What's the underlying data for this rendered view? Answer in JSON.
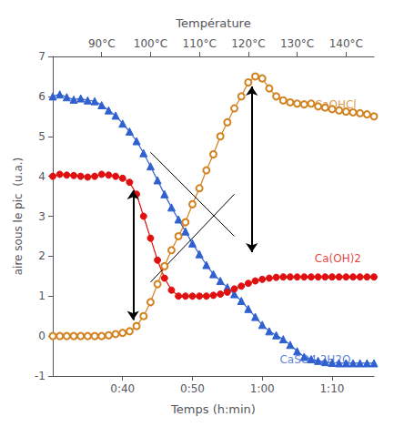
{
  "chart_data": {
    "type": "line",
    "xlabel": "Temps (h:min)",
    "ylabel": "aire sous le pic  (u.a.)",
    "x2label": "Température",
    "xlim": [
      30,
      76
    ],
    "xticks": [
      {
        "value": 40,
        "label": "0:40"
      },
      {
        "value": 50,
        "label": "0:50"
      },
      {
        "value": 60,
        "label": "1:00"
      },
      {
        "value": 70,
        "label": "1:10"
      }
    ],
    "x2lim": [
      30,
      76
    ],
    "x2ticks": [
      {
        "value": 37,
        "label": "90°C"
      },
      {
        "value": 44,
        "label": "100°C"
      },
      {
        "value": 51,
        "label": "110°C"
      },
      {
        "value": 58,
        "label": "120°C"
      },
      {
        "value": 65,
        "label": "130°C"
      },
      {
        "value": 72,
        "label": "140°C"
      }
    ],
    "ylim": [
      -1,
      7
    ],
    "yticks": [
      -1,
      0,
      1,
      2,
      3,
      4,
      5,
      6,
      7
    ],
    "grid": false,
    "series": [
      {
        "name": "CaSO4.2H2O",
        "color": "#3060d0",
        "marker": "triangle",
        "line_style": "solid",
        "x": [
          30,
          31,
          32,
          33,
          34,
          35,
          36,
          37,
          38,
          39,
          40,
          41,
          42,
          43,
          44,
          45,
          46,
          47,
          48,
          49,
          50,
          51,
          52,
          53,
          54,
          55,
          56,
          57,
          58,
          59,
          60,
          61,
          62,
          63,
          64,
          65,
          66,
          67,
          68,
          69,
          70,
          71,
          72,
          73,
          74,
          75,
          76
        ],
        "values": [
          6.0,
          6.05,
          5.98,
          5.92,
          5.95,
          5.9,
          5.88,
          5.78,
          5.65,
          5.52,
          5.32,
          5.12,
          4.88,
          4.58,
          4.25,
          3.9,
          3.55,
          3.22,
          2.92,
          2.62,
          2.32,
          2.05,
          1.78,
          1.55,
          1.38,
          1.22,
          1.05,
          0.88,
          0.68,
          0.48,
          0.28,
          0.12,
          0.02,
          -0.08,
          -0.22,
          -0.38,
          -0.52,
          -0.58,
          -0.62,
          -0.65,
          -0.67,
          -0.68,
          -0.68,
          -0.68,
          -0.68,
          -0.68,
          -0.68
        ]
      },
      {
        "name": "Ca(OH)2",
        "color": "#e01010",
        "marker": "circle",
        "line_style": "solid",
        "x": [
          30,
          31,
          32,
          33,
          34,
          35,
          36,
          37,
          38,
          39,
          40,
          41,
          42,
          43,
          44,
          45,
          46,
          47,
          48,
          49,
          50,
          51,
          52,
          53,
          54,
          55,
          56,
          57,
          58,
          59,
          60,
          61,
          62,
          63,
          64,
          65,
          66,
          67,
          68,
          69,
          70,
          71,
          72,
          73,
          74,
          75,
          76
        ],
        "values": [
          4.0,
          4.05,
          4.03,
          4.02,
          4.0,
          3.98,
          4.0,
          4.05,
          4.03,
          4.0,
          3.95,
          3.85,
          3.55,
          3.0,
          2.45,
          1.9,
          1.45,
          1.15,
          1.0,
          1.0,
          1.0,
          1.0,
          1.0,
          1.02,
          1.05,
          1.1,
          1.18,
          1.25,
          1.32,
          1.38,
          1.42,
          1.45,
          1.47,
          1.48,
          1.48,
          1.48,
          1.48,
          1.48,
          1.48,
          1.48,
          1.48,
          1.48,
          1.48,
          1.48,
          1.48,
          1.48,
          1.48
        ]
      },
      {
        "name": "CaOHCl",
        "color": "#d2821e",
        "marker": "open circle",
        "line_style": "solid",
        "x": [
          30,
          31,
          32,
          33,
          34,
          35,
          36,
          37,
          38,
          39,
          40,
          41,
          42,
          43,
          44,
          45,
          46,
          47,
          48,
          49,
          50,
          51,
          52,
          53,
          54,
          55,
          56,
          57,
          58,
          59,
          60,
          61,
          62,
          63,
          64,
          65,
          66,
          67,
          68,
          69,
          70,
          71,
          72,
          73,
          74,
          75,
          76
        ],
        "values": [
          0.0,
          0.0,
          0.0,
          0.0,
          0.0,
          0.0,
          0.0,
          0.0,
          0.02,
          0.05,
          0.08,
          0.12,
          0.25,
          0.5,
          0.85,
          1.3,
          1.75,
          2.15,
          2.5,
          2.85,
          3.3,
          3.7,
          4.15,
          4.55,
          5.0,
          5.35,
          5.7,
          6.0,
          6.35,
          6.5,
          6.45,
          6.2,
          6.0,
          5.9,
          5.85,
          5.82,
          5.8,
          5.82,
          5.75,
          5.72,
          5.68,
          5.65,
          5.62,
          5.6,
          5.58,
          5.55,
          5.5
        ]
      }
    ],
    "arrows": [
      {
        "x": 41.5,
        "y_start": 0.4,
        "y_end": 3.65,
        "color": "black"
      },
      {
        "x": 58.5,
        "y_start": 2.1,
        "y_end": 6.25,
        "color": "black"
      }
    ],
    "trend_lines": [
      {
        "x": [
          44,
          56
        ],
        "y": [
          4.6,
          2.5
        ],
        "color": "black"
      },
      {
        "x": [
          44,
          56
        ],
        "y": [
          1.35,
          3.55
        ],
        "color": "black"
      }
    ],
    "annotations": [
      {
        "text": "CaOHCl",
        "x": 67.5,
        "y": 5.8,
        "color": "#d2821e"
      },
      {
        "text": "Ca(OH)2",
        "x": 67.5,
        "y": 1.95,
        "color": "#e01010"
      },
      {
        "text": "CaSO4.2H2O",
        "x": 62.5,
        "y": -0.6,
        "color": "#3060d0"
      }
    ]
  }
}
